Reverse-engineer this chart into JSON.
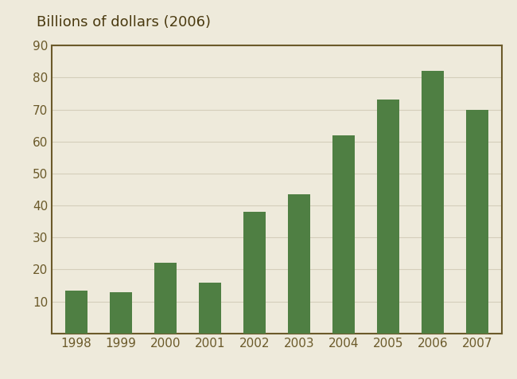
{
  "categories": [
    "1998",
    "1999",
    "2000",
    "2001",
    "2002",
    "2003",
    "2004",
    "2005",
    "2006",
    "2007"
  ],
  "values": [
    13.5,
    13.0,
    22.0,
    16.0,
    38.0,
    43.5,
    62.0,
    73.0,
    82.0,
    70.0
  ],
  "bar_color": "#4f7f43",
  "background_color": "#eeeadb",
  "figure_background": "#eeeadb",
  "border_color": "#6b5a2a",
  "tick_label_color": "#6b5a2a",
  "ylim": [
    0,
    90
  ],
  "yticks": [
    0,
    10,
    20,
    30,
    40,
    50,
    60,
    70,
    80,
    90
  ],
  "grid_color": "#d4ceba",
  "title": "Billions of dollars (2006)",
  "title_color": "#4a3a10",
  "title_fontsize": 13,
  "bar_width": 0.5
}
